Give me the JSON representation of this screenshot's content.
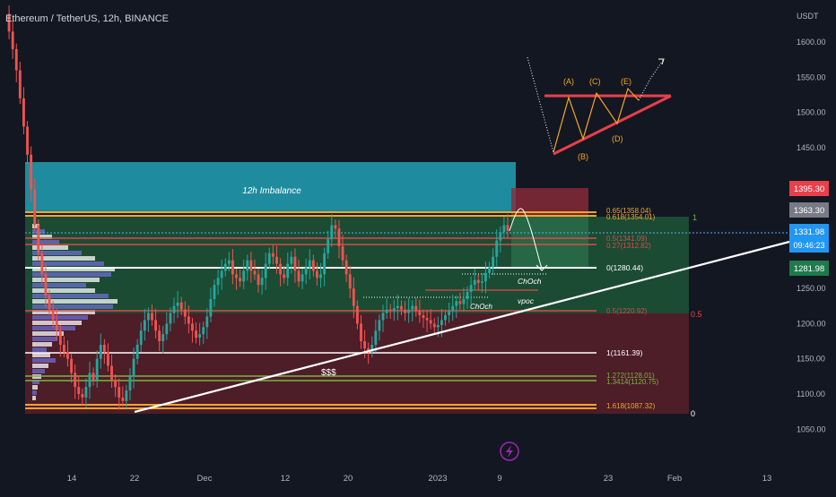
{
  "header": {
    "title": "Ethereum / TetherUS, 12h, BINANCE"
  },
  "axis": {
    "currency": "USDT",
    "y_ticks": [
      "1600.00",
      "1550.00",
      "1500.00",
      "1450.00",
      "1250.00",
      "1200.00",
      "1150.00",
      "1100.00",
      "1050.00"
    ],
    "x_ticks": [
      "14",
      "22",
      "Dec",
      "12",
      "20",
      "2023",
      "9",
      "23",
      "Feb",
      "13"
    ]
  },
  "price_labels": {
    "upper": "1395.30",
    "mid": "1363.30",
    "last": "1331.98",
    "countdown": "09:46:23",
    "lower": "1281.98"
  },
  "fib_labels": [
    "0.65(1358.04)",
    "0.618(1354.01)",
    "0.5(1341.09)",
    "0.27(1312.82)",
    "0(1280.44)",
    "0.5(1220.92)",
    "1(1161.39)",
    "1.272(1128.01)",
    "1.3414(1120.75)",
    "1.618(1087.32)"
  ],
  "zone_labels": {
    "right_top": "1",
    "right_mid": "0.5",
    "right_bottom": "0"
  },
  "annotations": {
    "imbalance": "12h Imbalance",
    "choch_1": "ChOch",
    "choch_2": "ChOch",
    "vpoc": "vpoc",
    "liquidity": "$$$"
  },
  "triangle_labels": [
    "(A)",
    "(B)",
    "(C)",
    "(D)",
    "(E)"
  ],
  "colors": {
    "background": "#131722",
    "up": "#26a69a",
    "down": "#ef5350",
    "imbalance": "#22a0b4",
    "accent": "#2962ff"
  },
  "chart_data": {
    "type": "candlestick",
    "title": "Ethereum / TetherUS, 12h, BINANCE",
    "y_unit": "USDT",
    "ylim": [
      1020,
      1640
    ],
    "last_price": 1331.98,
    "fib_levels": [
      {
        "ratio": 0.65,
        "price": 1358.04
      },
      {
        "ratio": 0.618,
        "price": 1354.01
      },
      {
        "ratio": 0.5,
        "price": 1341.09
      },
      {
        "ratio": 0.27,
        "price": 1312.82
      },
      {
        "ratio": 0,
        "price": 1280.44
      },
      {
        "ratio": 0.5,
        "price": 1220.92
      },
      {
        "ratio": 1,
        "price": 1161.39
      },
      {
        "ratio": 1.272,
        "price": 1128.01
      },
      {
        "ratio": 1.3414,
        "price": 1120.75
      },
      {
        "ratio": 1.618,
        "price": 1087.32
      }
    ],
    "price_path": [
      1640,
      1615,
      1590,
      1560,
      1520,
      1480,
      1440,
      1390,
      1340,
      1300,
      1270,
      1240,
      1220,
      1205,
      1190,
      1170,
      1160,
      1150,
      1130,
      1110,
      1100,
      1095,
      1110,
      1130,
      1120,
      1150,
      1170,
      1160,
      1140,
      1120,
      1110,
      1095,
      1090,
      1105,
      1125,
      1150,
      1170,
      1190,
      1205,
      1215,
      1205,
      1190,
      1175,
      1185,
      1200,
      1215,
      1225,
      1230,
      1220,
      1210,
      1200,
      1190,
      1180,
      1185,
      1195,
      1210,
      1235,
      1255,
      1265,
      1275,
      1285,
      1290,
      1270,
      1265,
      1260,
      1275,
      1290,
      1275,
      1270,
      1255,
      1265,
      1285,
      1300,
      1295,
      1285,
      1270,
      1265,
      1285,
      1295,
      1275,
      1260,
      1270,
      1280,
      1290,
      1275,
      1265,
      1270,
      1300,
      1320,
      1340,
      1335,
      1310,
      1290,
      1270,
      1250,
      1225,
      1200,
      1175,
      1165,
      1160,
      1170,
      1190,
      1205,
      1215,
      1220,
      1218,
      1222,
      1225,
      1220,
      1215,
      1220,
      1225,
      1218,
      1212,
      1208,
      1205,
      1200,
      1195,
      1198,
      1205,
      1212,
      1218,
      1225,
      1232,
      1228,
      1235,
      1245,
      1255,
      1262,
      1258,
      1260,
      1272,
      1280,
      1295,
      1318,
      1330,
      1340,
      1332
    ]
  }
}
